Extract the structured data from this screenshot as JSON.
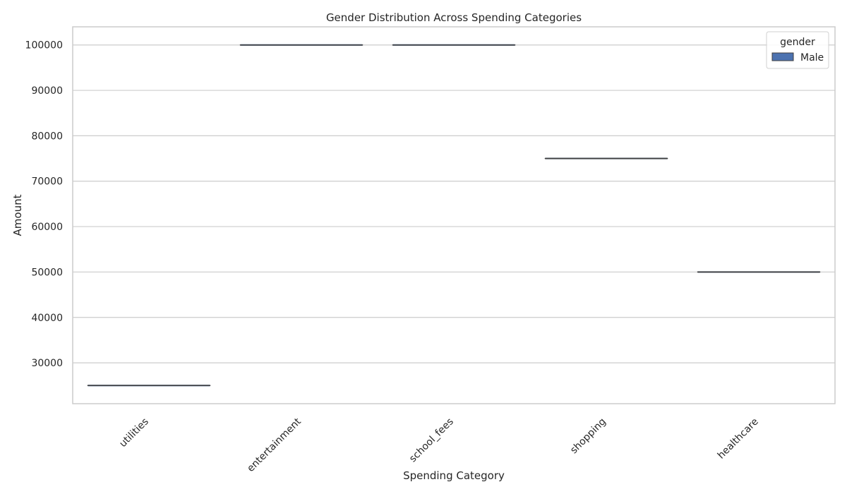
{
  "chart_data": {
    "type": "box",
    "title": "Gender Distribution Across Spending Categories",
    "xlabel": "Spending Category",
    "ylabel": "Amount",
    "categories": [
      "utilities",
      "entertainment",
      "school_fees",
      "shopping",
      "healthcare"
    ],
    "series": [
      {
        "name": "Male",
        "values": [
          25000,
          100000,
          100000,
          75000,
          50000
        ]
      }
    ],
    "yticks": [
      30000,
      40000,
      50000,
      60000,
      70000,
      80000,
      90000,
      100000
    ],
    "ylim": [
      21000,
      104000
    ],
    "grid": true,
    "legend": {
      "title": "gender",
      "position": "top-right"
    },
    "colors": {
      "series": "#4c72b0",
      "median": "#3f3f3f",
      "grid": "#cccccc",
      "axis": "#cccccc",
      "text": "#262626"
    }
  }
}
